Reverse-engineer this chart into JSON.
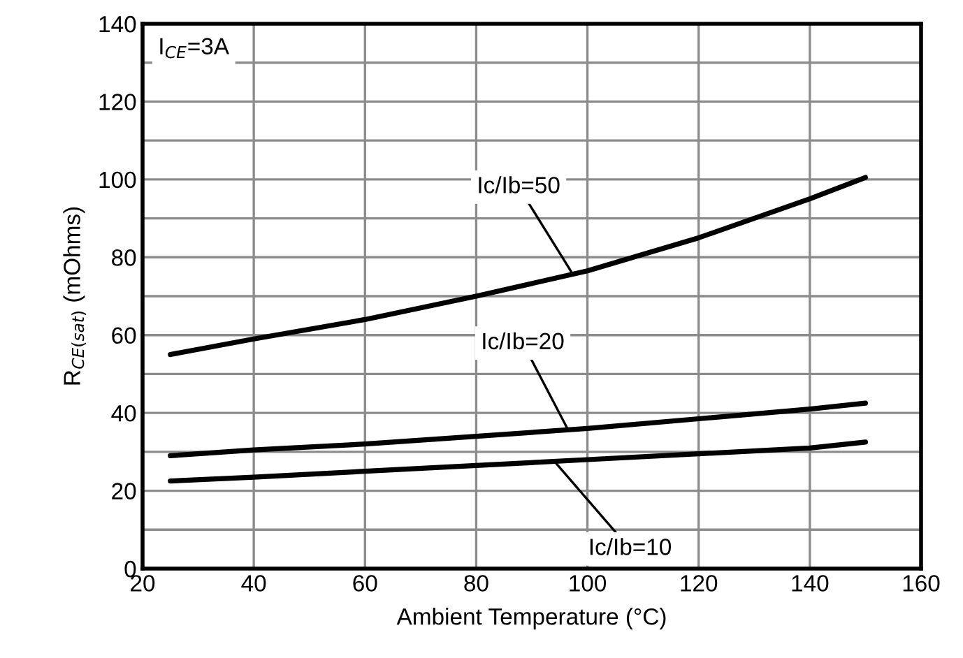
{
  "chart_data": {
    "type": "line",
    "xlabel": "Ambient Temperature (°C)",
    "ylabel": "R$_{CE(sat)}$ (mOhms)",
    "x": [
      25,
      40,
      60,
      80,
      100,
      120,
      140,
      150
    ],
    "series": [
      {
        "color": "#000000",
        "values": [
          55,
          59,
          64,
          70,
          76.5,
          85,
          95,
          100.5
        ]
      },
      {
        "color": "#000000",
        "values": [
          29,
          30.5,
          32,
          34,
          36,
          38.5,
          41,
          42.5
        ]
      },
      {
        "color": "#000000",
        "values": [
          22.5,
          23.5,
          25,
          26.5,
          28,
          29.5,
          31,
          32.5
        ]
      }
    ],
    "xlim": [
      20,
      160
    ],
    "xticks": [
      20,
      40,
      60,
      80,
      100,
      120,
      140,
      160
    ],
    "ylim": [
      0,
      140
    ],
    "yticks": [
      0,
      {
        "value": 10,
        "label": null
      },
      20,
      {
        "value": 30,
        "label": null
      },
      40,
      {
        "value": 50,
        "label": null
      },
      60,
      {
        "value": 70,
        "label": null
      },
      80,
      {
        "value": 90,
        "label": null
      },
      100,
      {
        "value": 110,
        "label": null
      },
      120,
      {
        "value": 130,
        "label": null
      },
      140
    ],
    "grid": true,
    "marker": "none",
    "line_style": "solid",
    "annotations": [
      "I$_{CE}$=3A",
      {
        "text": "Ic/Ib=50",
        "x": 97.4,
        "y": 75.6
      },
      {
        "text": "Ic/Ib=20",
        "x": 96.4,
        "y": 36
      },
      {
        "text": "Ic/Ib=10",
        "x": 94.4,
        "y": 27
      }
    ]
  }
}
